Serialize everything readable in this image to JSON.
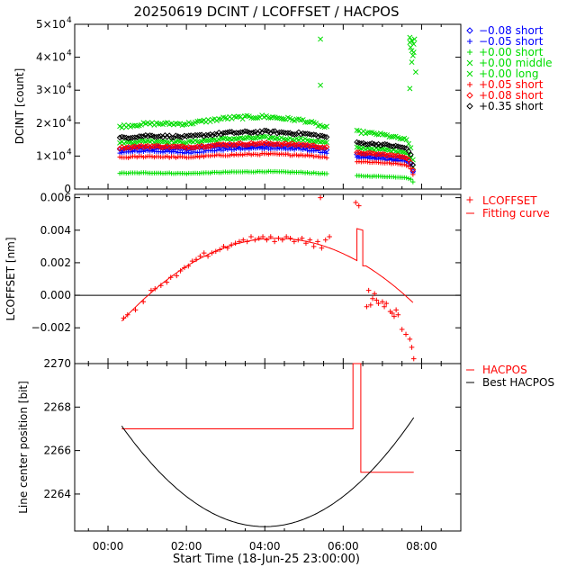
{
  "figure_title": "20250619 DCINT / LCOFFSET / HACPOS",
  "x_axis": {
    "label": "Start Time (18-Jun-25 23:00:00)",
    "range_hours": [
      -0.85,
      9.0
    ],
    "ticks": [
      {
        "value": 0,
        "label": "00:00"
      },
      {
        "value": 2,
        "label": "02:00"
      },
      {
        "value": 4,
        "label": "04:00"
      },
      {
        "value": 6,
        "label": "06:00"
      },
      {
        "value": 8,
        "label": "08:00"
      }
    ]
  },
  "chart_data": [
    {
      "type": "scatter",
      "panel": "dcint",
      "ylabel": "DCINT [count]",
      "ylim": [
        0,
        50000
      ],
      "yticks": [
        {
          "value": 0,
          "label": "0",
          "sup": ""
        },
        {
          "value": 10000,
          "label": "1×10",
          "sup": "4"
        },
        {
          "value": 20000,
          "label": "2×10",
          "sup": "4"
        },
        {
          "value": 30000,
          "label": "3×10",
          "sup": "4"
        },
        {
          "value": 40000,
          "label": "4×10",
          "sup": "4"
        },
        {
          "value": 50000,
          "label": "5×10",
          "sup": "4"
        }
      ],
      "gap": [
        5.6,
        6.3
      ],
      "series": [
        {
          "name": "-0.08 short",
          "marker": "diamond",
          "color": "#0000ff",
          "shape": [
            [
              0.3,
              12000
            ],
            [
              1.0,
              12600
            ],
            [
              2.0,
              12300
            ],
            [
              3.0,
              13200
            ],
            [
              4.0,
              13300
            ],
            [
              5.0,
              13000
            ],
            [
              5.6,
              12000
            ],
            [
              6.3,
              10500
            ],
            [
              7.0,
              10000
            ],
            [
              7.6,
              9200
            ],
            [
              7.75,
              7500
            ],
            [
              7.8,
              4200
            ]
          ]
        },
        {
          "name": "-0.05 short",
          "marker": "plus",
          "color": "#0000ff",
          "shape": [
            [
              0.3,
              11000
            ],
            [
              1.0,
              11600
            ],
            [
              2.0,
              11000
            ],
            [
              3.0,
              12000
            ],
            [
              4.0,
              12400
            ],
            [
              5.0,
              12000
            ],
            [
              5.6,
              11000
            ],
            [
              6.3,
              9500
            ],
            [
              7.0,
              9000
            ],
            [
              7.6,
              8300
            ],
            [
              7.75,
              6800
            ],
            [
              7.8,
              3800
            ]
          ]
        },
        {
          "name": "+0.00 short",
          "marker": "plus",
          "color": "#00dd00",
          "shape": [
            [
              0.3,
              4800
            ],
            [
              1.0,
              4900
            ],
            [
              2.0,
              4700
            ],
            [
              3.0,
              5100
            ],
            [
              4.0,
              5300
            ],
            [
              5.0,
              5000
            ],
            [
              5.6,
              4600
            ],
            [
              6.3,
              4000
            ],
            [
              7.0,
              3800
            ],
            [
              7.6,
              3500
            ],
            [
              7.75,
              2800
            ],
            [
              7.8,
              1800
            ]
          ]
        },
        {
          "name": "+0.00 middle",
          "marker": "cross",
          "color": "#00dd00",
          "shape": [
            [
              0.3,
              14000
            ],
            [
              1.0,
              14600
            ],
            [
              2.0,
              14200
            ],
            [
              3.0,
              15200
            ],
            [
              4.0,
              15600
            ],
            [
              5.0,
              15000
            ],
            [
              5.6,
              14000
            ],
            [
              6.3,
              12500
            ],
            [
              7.0,
              12000
            ],
            [
              7.6,
              11200
            ],
            [
              7.75,
              9000
            ],
            [
              7.8,
              5000
            ]
          ]
        },
        {
          "name": "+0.00 long",
          "marker": "cross",
          "color": "#00dd00",
          "shape": [
            [
              0.3,
              19000
            ],
            [
              1.0,
              19800
            ],
            [
              2.0,
              19800
            ],
            [
              3.0,
              21500
            ],
            [
              4.0,
              22000
            ],
            [
              5.0,
              20800
            ],
            [
              5.6,
              18500
            ],
            [
              6.3,
              17500
            ],
            [
              7.0,
              16500
            ],
            [
              7.6,
              15000
            ],
            [
              7.75,
              12000
            ],
            [
              7.8,
              7000
            ]
          ]
        },
        {
          "name": "+0.05 short",
          "marker": "plus",
          "color": "#ff0000",
          "shape": [
            [
              0.3,
              9500
            ],
            [
              1.0,
              9900
            ],
            [
              2.0,
              9600
            ],
            [
              3.0,
              10300
            ],
            [
              4.0,
              10600
            ],
            [
              5.0,
              10300
            ],
            [
              5.6,
              9600
            ],
            [
              6.3,
              8400
            ],
            [
              7.0,
              8000
            ],
            [
              7.6,
              7400
            ],
            [
              7.75,
              6000
            ],
            [
              7.8,
              3400
            ]
          ]
        },
        {
          "name": "+0.08 short",
          "marker": "diamond",
          "color": "#ff0000",
          "shape": [
            [
              0.3,
              12500
            ],
            [
              1.0,
              13000
            ],
            [
              2.0,
              12700
            ],
            [
              3.0,
              13500
            ],
            [
              4.0,
              13800
            ],
            [
              5.0,
              13400
            ],
            [
              5.6,
              12500
            ],
            [
              6.3,
              11000
            ],
            [
              7.0,
              10500
            ],
            [
              7.6,
              9700
            ],
            [
              7.75,
              7800
            ],
            [
              7.8,
              4400
            ]
          ]
        },
        {
          "name": "+0.35 short",
          "marker": "diamond",
          "color": "#000000",
          "shape": [
            [
              0.3,
              15500
            ],
            [
              1.0,
              16200
            ],
            [
              2.0,
              15800
            ],
            [
              3.0,
              17000
            ],
            [
              4.0,
              17400
            ],
            [
              5.0,
              16800
            ],
            [
              5.6,
              15800
            ],
            [
              6.3,
              14000
            ],
            [
              7.0,
              13500
            ],
            [
              7.6,
              12500
            ],
            [
              7.75,
              10000
            ],
            [
              7.8,
              5500
            ]
          ]
        }
      ],
      "outliers": [
        {
          "series": "+0.00 long",
          "points": [
            [
              5.42,
              45500
            ],
            [
              5.42,
              31500
            ],
            [
              7.7,
              46000
            ],
            [
              7.7,
              44500
            ],
            [
              7.72,
              43000
            ],
            [
              7.75,
              45000
            ],
            [
              7.75,
              42000
            ],
            [
              7.78,
              40500
            ],
            [
              7.8,
              44000
            ],
            [
              7.82,
              45500
            ],
            [
              7.85,
              35500
            ],
            [
              7.7,
              30500
            ],
            [
              7.75,
              38500
            ],
            [
              7.8,
              41500
            ]
          ]
        }
      ]
    },
    {
      "type": "scatter",
      "panel": "lcoffset",
      "ylabel": "LCOFFSET [nm]",
      "ylim": [
        -0.0042,
        0.0062
      ],
      "yticks": [
        {
          "value": -0.002,
          "label": "−0.002"
        },
        {
          "value": 0.0,
          "label": "0.000"
        },
        {
          "value": 0.002,
          "label": "0.002"
        },
        {
          "value": 0.004,
          "label": "0.004"
        },
        {
          "value": 0.006,
          "label": "0.006"
        }
      ],
      "zero_line": true,
      "series": [
        {
          "name": "LCOFFSET",
          "marker": "plus",
          "color": "#ff0000",
          "points": [
            [
              0.4,
              -0.0014
            ],
            [
              0.5,
              -0.0012
            ],
            [
              0.7,
              -0.0009
            ],
            [
              0.9,
              -0.0004
            ],
            [
              1.1,
              0.0003
            ],
            [
              1.2,
              0.0004
            ],
            [
              1.35,
              0.0006
            ],
            [
              1.5,
              0.0008
            ],
            [
              1.6,
              0.0011
            ],
            [
              1.75,
              0.0012
            ],
            [
              1.85,
              0.0015
            ],
            [
              1.95,
              0.0017
            ],
            [
              2.05,
              0.0018
            ],
            [
              2.15,
              0.0021
            ],
            [
              2.25,
              0.0022
            ],
            [
              2.35,
              0.0024
            ],
            [
              2.45,
              0.0026
            ],
            [
              2.55,
              0.0024
            ],
            [
              2.65,
              0.0026
            ],
            [
              2.75,
              0.0027
            ],
            [
              2.85,
              0.0028
            ],
            [
              2.95,
              0.003
            ],
            [
              3.05,
              0.0029
            ],
            [
              3.15,
              0.0031
            ],
            [
              3.25,
              0.0032
            ],
            [
              3.35,
              0.0033
            ],
            [
              3.45,
              0.0034
            ],
            [
              3.55,
              0.0033
            ],
            [
              3.65,
              0.0036
            ],
            [
              3.75,
              0.0034
            ],
            [
              3.85,
              0.0035
            ],
            [
              3.95,
              0.0036
            ],
            [
              4.05,
              0.0034
            ],
            [
              4.15,
              0.0036
            ],
            [
              4.25,
              0.0033
            ],
            [
              4.35,
              0.0035
            ],
            [
              4.45,
              0.0034
            ],
            [
              4.55,
              0.0036
            ],
            [
              4.65,
              0.0035
            ],
            [
              4.75,
              0.0033
            ],
            [
              4.85,
              0.0034
            ],
            [
              4.95,
              0.0035
            ],
            [
              5.05,
              0.0032
            ],
            [
              5.15,
              0.0034
            ],
            [
              5.25,
              0.003
            ],
            [
              5.35,
              0.0033
            ],
            [
              5.45,
              0.0029
            ],
            [
              5.55,
              0.0034
            ],
            [
              5.42,
              0.006
            ],
            [
              5.65,
              0.0036
            ],
            [
              6.32,
              0.0057
            ],
            [
              6.4,
              0.0055
            ],
            [
              6.6,
              -0.0007
            ],
            [
              6.65,
              0.0003
            ],
            [
              6.7,
              -0.0006
            ],
            [
              6.75,
              -0.0002
            ],
            [
              6.8,
              0.0001
            ],
            [
              6.85,
              -0.0003
            ],
            [
              6.9,
              -0.0005
            ],
            [
              7.0,
              -0.0004
            ],
            [
              7.05,
              -0.0007
            ],
            [
              7.1,
              -0.0005
            ],
            [
              7.2,
              -0.001
            ],
            [
              7.25,
              -0.0011
            ],
            [
              7.3,
              -0.0013
            ],
            [
              7.35,
              -0.0009
            ],
            [
              7.4,
              -0.0012
            ],
            [
              7.5,
              -0.0021
            ],
            [
              7.6,
              -0.0024
            ],
            [
              7.7,
              -0.0027
            ],
            [
              7.75,
              -0.0032
            ],
            [
              7.8,
              -0.0039
            ]
          ]
        },
        {
          "name": "Fitting curve",
          "marker": "line",
          "color": "#ff0000",
          "fit": {
            "peak_x": 4.3,
            "peak_y": 0.0035,
            "k": 0.000326
          },
          "segments": [
            [
              0.35,
              6.18
            ],
            [
              6.58,
              7.82
            ]
          ],
          "jump_x": 6.35,
          "jump_top": 0.0041
        }
      ]
    },
    {
      "type": "line",
      "panel": "hacpos",
      "ylabel": "Line center position [bit]",
      "ylim": [
        2262.3,
        2270
      ],
      "yticks": [
        {
          "value": 2264,
          "label": "2264"
        },
        {
          "value": 2266,
          "label": "2266"
        },
        {
          "value": 2268,
          "label": "2268"
        },
        {
          "value": 2270,
          "label": "2270"
        }
      ],
      "series": [
        {
          "name": "HACPOS",
          "color": "#ff0000",
          "points": [
            [
              0.35,
              2267.0
            ],
            [
              6.25,
              2267.0
            ],
            [
              6.25,
              2270.0
            ],
            [
              6.45,
              2270.0
            ],
            [
              6.45,
              2265.0
            ],
            [
              7.8,
              2265.0
            ]
          ]
        },
        {
          "name": "Best HACPOS",
          "color": "#000000",
          "curve": {
            "vertex_x": 4.0,
            "vertex_y": 2262.5,
            "a": 0.3475,
            "x_from": 0.35,
            "x_to": 7.8
          }
        }
      ]
    }
  ]
}
